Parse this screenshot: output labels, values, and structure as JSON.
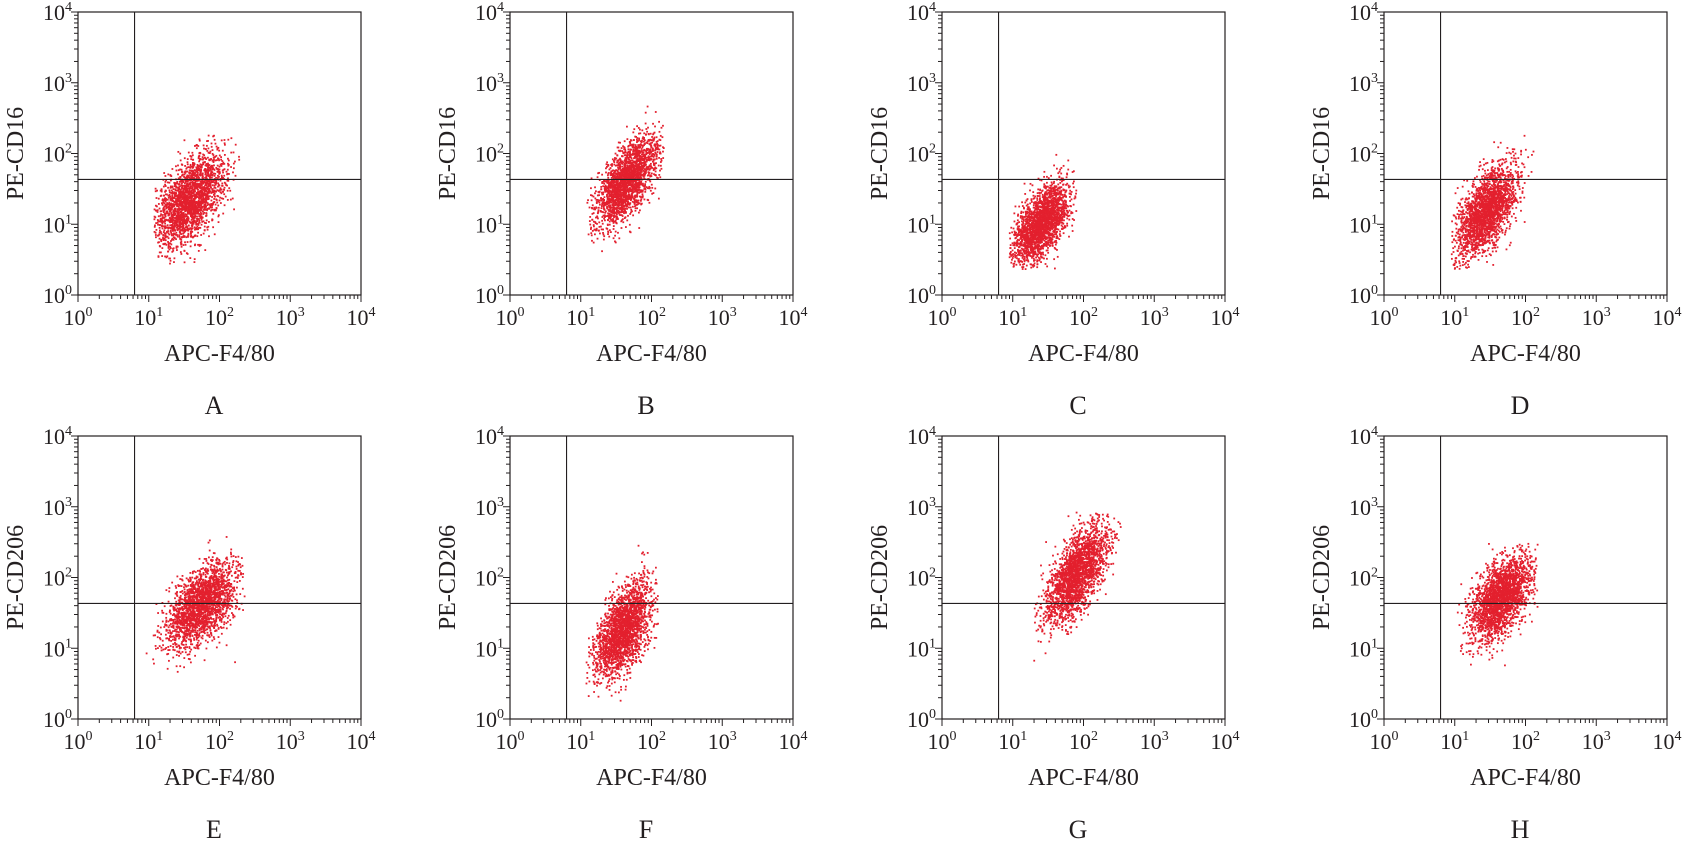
{
  "figure": {
    "marker_color": "#e3202e",
    "axis_color": "#231f20",
    "background": "#ffffff"
  },
  "chart_data": [
    {
      "type": "scatter",
      "panel_label": "A",
      "xlabel": "APC-F4/80",
      "ylabel": "PE-CD16",
      "xscale": "log",
      "yscale": "log",
      "xlim": [
        1,
        10000
      ],
      "ylim": [
        1,
        10000
      ],
      "xticks": [
        "10^0",
        "10^1",
        "10^2",
        "10^3",
        "10^4"
      ],
      "yticks": [
        "10^0",
        "10^1",
        "10^2",
        "10^3",
        "10^4"
      ],
      "gates": {
        "x": 6.3,
        "y": 43
      },
      "population": {
        "center_x": 38,
        "center_y": 22,
        "spread_log10_x": 0.25,
        "spread_log10_y": 0.33,
        "correlation": 0.55,
        "x_range": [
          12,
          200
        ],
        "y_range": [
          2.5,
          450
        ],
        "n_events": 2200
      },
      "grid": false,
      "legend": "none",
      "color": "#e3202e"
    },
    {
      "type": "scatter",
      "panel_label": "B",
      "xlabel": "APC-F4/80",
      "ylabel": "PE-CD16",
      "xscale": "log",
      "yscale": "log",
      "xlim": [
        1,
        10000
      ],
      "ylim": [
        1,
        10000
      ],
      "xticks": [
        "10^0",
        "10^1",
        "10^2",
        "10^3",
        "10^4"
      ],
      "yticks": [
        "10^0",
        "10^1",
        "10^2",
        "10^3",
        "10^4"
      ],
      "gates": {
        "x": 6.3,
        "y": 43
      },
      "population": {
        "center_x": 45,
        "center_y": 40,
        "spread_log10_x": 0.22,
        "spread_log10_y": 0.32,
        "correlation": 0.65,
        "x_range": [
          12,
          150
        ],
        "y_range": [
          4,
          500
        ],
        "n_events": 2200
      },
      "grid": false,
      "legend": "none",
      "color": "#e3202e"
    },
    {
      "type": "scatter",
      "panel_label": "C",
      "xlabel": "APC-F4/80",
      "ylabel": "PE-CD16",
      "xscale": "log",
      "yscale": "log",
      "xlim": [
        1,
        10000
      ],
      "ylim": [
        1,
        10000
      ],
      "xticks": [
        "10^0",
        "10^1",
        "10^2",
        "10^3",
        "10^4"
      ],
      "yticks": [
        "10^0",
        "10^1",
        "10^2",
        "10^3",
        "10^4"
      ],
      "gates": {
        "x": 6.3,
        "y": 43
      },
      "population": {
        "center_x": 25,
        "center_y": 10,
        "spread_log10_x": 0.2,
        "spread_log10_y": 0.28,
        "correlation": 0.55,
        "x_range": [
          9,
          80
        ],
        "y_range": [
          2.3,
          120
        ],
        "n_events": 2200
      },
      "grid": false,
      "legend": "none",
      "color": "#e3202e"
    },
    {
      "type": "scatter",
      "panel_label": "D",
      "xlabel": "APC-F4/80",
      "ylabel": "PE-CD16",
      "xscale": "log",
      "yscale": "log",
      "xlim": [
        1,
        10000
      ],
      "ylim": [
        1,
        10000
      ],
      "xticks": [
        "10^0",
        "10^1",
        "10^2",
        "10^3",
        "10^4"
      ],
      "yticks": [
        "10^0",
        "10^1",
        "10^2",
        "10^3",
        "10^4"
      ],
      "gates": {
        "x": 6.3,
        "y": 43
      },
      "population": {
        "center_x": 28,
        "center_y": 15,
        "spread_log10_x": 0.22,
        "spread_log10_y": 0.33,
        "correlation": 0.6,
        "x_range": [
          9,
          130
        ],
        "y_range": [
          2.3,
          480
        ],
        "n_events": 2200
      },
      "grid": false,
      "legend": "none",
      "color": "#e3202e"
    },
    {
      "type": "scatter",
      "panel_label": "E",
      "xlabel": "APC-F4/80",
      "ylabel": "PE-CD206",
      "xscale": "log",
      "yscale": "log",
      "xlim": [
        1,
        10000
      ],
      "ylim": [
        1,
        10000
      ],
      "xticks": [
        "10^0",
        "10^1",
        "10^2",
        "10^3",
        "10^4"
      ],
      "yticks": [
        "10^0",
        "10^1",
        "10^2",
        "10^3",
        "10^4"
      ],
      "gates": {
        "x": 6.3,
        "y": 43
      },
      "population": {
        "center_x": 55,
        "center_y": 40,
        "spread_log10_x": 0.25,
        "spread_log10_y": 0.3,
        "correlation": 0.55,
        "x_range": [
          8,
          230
        ],
        "y_range": [
          2.5,
          500
        ],
        "n_events": 2200
      },
      "grid": false,
      "legend": "none",
      "color": "#e3202e"
    },
    {
      "type": "scatter",
      "panel_label": "F",
      "xlabel": "APC-F4/80",
      "ylabel": "PE-CD206",
      "xscale": "log",
      "yscale": "log",
      "xlim": [
        1,
        10000
      ],
      "ylim": [
        1,
        10000
      ],
      "xticks": [
        "10^0",
        "10^1",
        "10^2",
        "10^3",
        "10^4"
      ],
      "yticks": [
        "10^0",
        "10^1",
        "10^2",
        "10^3",
        "10^4"
      ],
      "gates": {
        "x": 6.3,
        "y": 43
      },
      "population": {
        "center_x": 40,
        "center_y": 18,
        "spread_log10_x": 0.2,
        "spread_log10_y": 0.33,
        "correlation": 0.55,
        "x_range": [
          12,
          130
        ],
        "y_range": [
          1.8,
          450
        ],
        "n_events": 2200
      },
      "grid": false,
      "legend": "none",
      "color": "#e3202e"
    },
    {
      "type": "scatter",
      "panel_label": "G",
      "xlabel": "APC-F4/80",
      "ylabel": "PE-CD206",
      "xscale": "log",
      "yscale": "log",
      "xlim": [
        1,
        10000
      ],
      "ylim": [
        1,
        10000
      ],
      "xticks": [
        "10^0",
        "10^1",
        "10^2",
        "10^3",
        "10^4"
      ],
      "yticks": [
        "10^0",
        "10^1",
        "10^2",
        "10^3",
        "10^4"
      ],
      "gates": {
        "x": 6.3,
        "y": 43
      },
      "population": {
        "center_x": 80,
        "center_y": 110,
        "spread_log10_x": 0.22,
        "spread_log10_y": 0.35,
        "correlation": 0.65,
        "x_range": [
          20,
          350
        ],
        "y_range": [
          3,
          900
        ],
        "n_events": 2200
      },
      "grid": false,
      "legend": "none",
      "color": "#e3202e"
    },
    {
      "type": "scatter",
      "panel_label": "H",
      "xlabel": "APC-F4/80",
      "ylabel": "PE-CD206",
      "xscale": "log",
      "yscale": "log",
      "xlim": [
        1,
        10000
      ],
      "ylim": [
        1,
        10000
      ],
      "xticks": [
        "10^0",
        "10^1",
        "10^2",
        "10^3",
        "10^4"
      ],
      "yticks": [
        "10^0",
        "10^1",
        "10^2",
        "10^3",
        "10^4"
      ],
      "gates": {
        "x": 6.3,
        "y": 43
      },
      "population": {
        "center_x": 45,
        "center_y": 50,
        "spread_log10_x": 0.22,
        "spread_log10_y": 0.3,
        "correlation": 0.55,
        "x_range": [
          10,
          150
        ],
        "y_range": [
          2.5,
          300
        ],
        "n_events": 2200
      },
      "grid": false,
      "legend": "none",
      "color": "#e3202e"
    }
  ]
}
